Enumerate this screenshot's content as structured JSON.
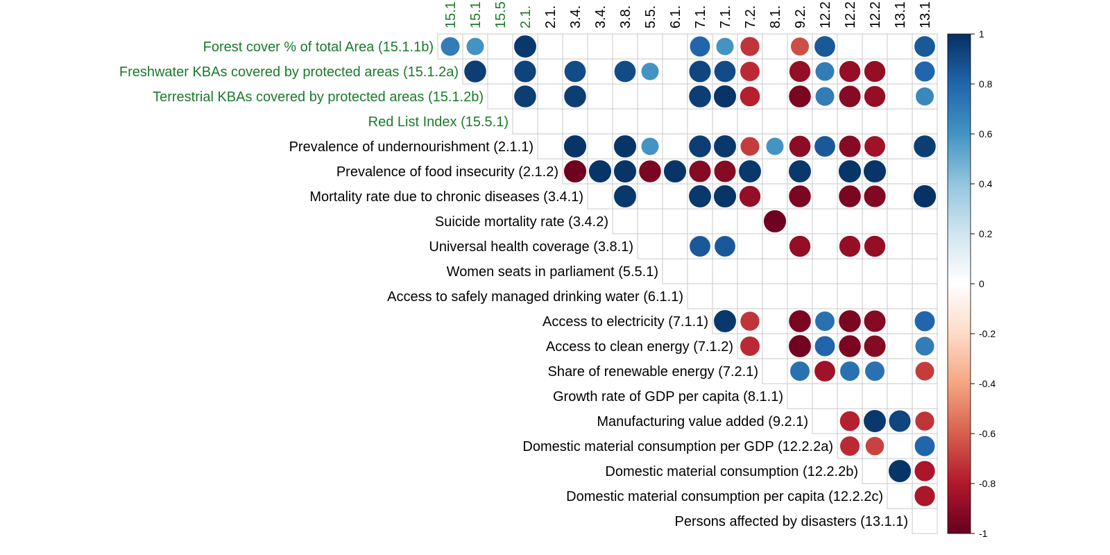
{
  "chart_data": {
    "type": "heatmap",
    "variant": "corrplot-upper-circles",
    "title": "",
    "row_labels": [
      "Forest cover % of total Area (15.1.1b)",
      "Freshwater KBAs covered by protected areas (15.1.2a)",
      "Terrestrial KBAs covered by protected areas (15.1.2b)",
      "Red List Index (15.5.1)",
      "Prevalence of undernourishment (2.1.1)",
      "Prevalence of food insecurity (2.1.2)",
      "Mortality rate due to chronic diseases (3.4.1)",
      "Suicide mortality rate (3.4.2)",
      "Universal health coverage (3.8.1)",
      "Women seats in parliament (5.5.1)",
      "Access to safely managed drinking water (6.1.1)",
      "Access to electricity (7.1.1)",
      "Access to clean energy (7.1.2)",
      "Share of renewable energy (7.2.1)",
      "Growth rate of GDP per capita (8.1.1)",
      "Manufacturing value added (9.2.1)",
      "Domestic material consumption per GDP (12.2.2a)",
      "Domestic material consumption (12.2.2b)",
      "Domestic material consumption per capita (12.2.2c)",
      "Persons affected by disasters (13.1.1)"
    ],
    "column_labels": [
      "15.1",
      "15.1",
      "15.5",
      "2.1.",
      "2.1.",
      "3.4.",
      "3.4.",
      "3.8.",
      "5.5.",
      "6.1.",
      "7.1.",
      "7.1.",
      "7.2.",
      "8.1.",
      "9.2.",
      "12.2",
      "12.2",
      "12.2",
      "13.1",
      "13.1"
    ],
    "highlight_count": 4,
    "highlight_color": "#1a7a2a",
    "text_color": "#000000",
    "colorbar": {
      "ticks": [
        "1",
        "0.8",
        "0.6",
        "0.4",
        "0.2",
        "0",
        "-0.2",
        "-0.4",
        "-0.6",
        "-0.8",
        "-1"
      ],
      "range": [
        -1,
        1
      ],
      "colors": [
        "#67001f",
        "#b2182b",
        "#d6604d",
        "#f4a582",
        "#fddbc7",
        "#ffffff",
        "#d1e5f0",
        "#92c5de",
        "#4393c3",
        "#2166ac",
        "#053061"
      ]
    },
    "cells": [
      [
        0,
        0,
        0.7
      ],
      [
        0,
        1,
        0.6
      ],
      [
        0,
        3,
        0.97
      ],
      [
        0,
        10,
        0.8
      ],
      [
        0,
        11,
        0.6
      ],
      [
        0,
        12,
        -0.72
      ],
      [
        0,
        14,
        -0.65
      ],
      [
        0,
        15,
        0.85
      ],
      [
        0,
        19,
        0.85
      ],
      [
        1,
        1,
        0.95
      ],
      [
        1,
        3,
        0.93
      ],
      [
        1,
        5,
        0.9
      ],
      [
        1,
        7,
        0.9
      ],
      [
        1,
        8,
        0.6
      ],
      [
        1,
        10,
        0.92
      ],
      [
        1,
        11,
        0.9
      ],
      [
        1,
        12,
        -0.75
      ],
      [
        1,
        14,
        -0.88
      ],
      [
        1,
        15,
        0.7
      ],
      [
        1,
        16,
        -0.88
      ],
      [
        1,
        17,
        -0.88
      ],
      [
        1,
        19,
        0.8
      ],
      [
        2,
        3,
        0.95
      ],
      [
        2,
        5,
        0.95
      ],
      [
        2,
        10,
        0.95
      ],
      [
        2,
        11,
        0.98
      ],
      [
        2,
        12,
        -0.78
      ],
      [
        2,
        14,
        -0.95
      ],
      [
        2,
        15,
        0.7
      ],
      [
        2,
        16,
        -0.92
      ],
      [
        2,
        17,
        -0.88
      ],
      [
        2,
        19,
        0.65
      ],
      [
        4,
        5,
        0.98
      ],
      [
        4,
        7,
        0.98
      ],
      [
        4,
        8,
        0.6
      ],
      [
        4,
        10,
        0.95
      ],
      [
        4,
        11,
        0.97
      ],
      [
        4,
        12,
        -0.7
      ],
      [
        4,
        13,
        0.6
      ],
      [
        4,
        14,
        -0.9
      ],
      [
        4,
        15,
        0.85
      ],
      [
        4,
        16,
        -0.92
      ],
      [
        4,
        17,
        -0.85
      ],
      [
        4,
        19,
        0.95
      ],
      [
        5,
        5,
        -0.98
      ],
      [
        5,
        6,
        0.98
      ],
      [
        5,
        7,
        0.98
      ],
      [
        5,
        8,
        -0.95
      ],
      [
        5,
        9,
        0.98
      ],
      [
        5,
        10,
        -0.92
      ],
      [
        5,
        11,
        -0.92
      ],
      [
        5,
        12,
        0.97
      ],
      [
        5,
        14,
        0.97
      ],
      [
        5,
        16,
        0.98
      ],
      [
        5,
        17,
        0.98
      ],
      [
        6,
        7,
        0.97
      ],
      [
        6,
        10,
        0.97
      ],
      [
        6,
        11,
        0.98
      ],
      [
        6,
        12,
        -0.88
      ],
      [
        6,
        14,
        -0.95
      ],
      [
        6,
        16,
        -0.95
      ],
      [
        6,
        17,
        -0.93
      ],
      [
        6,
        19,
        0.99
      ],
      [
        7,
        13,
        -0.98
      ],
      [
        8,
        10,
        0.85
      ],
      [
        8,
        11,
        0.85
      ],
      [
        8,
        14,
        -0.88
      ],
      [
        8,
        16,
        -0.88
      ],
      [
        8,
        17,
        -0.88
      ],
      [
        11,
        11,
        0.97
      ],
      [
        11,
        12,
        -0.72
      ],
      [
        11,
        14,
        -0.95
      ],
      [
        11,
        15,
        0.75
      ],
      [
        11,
        16,
        -0.95
      ],
      [
        11,
        17,
        -0.92
      ],
      [
        11,
        19,
        0.8
      ],
      [
        12,
        12,
        -0.75
      ],
      [
        12,
        14,
        -0.97
      ],
      [
        12,
        15,
        0.8
      ],
      [
        12,
        16,
        -0.95
      ],
      [
        12,
        17,
        -0.92
      ],
      [
        12,
        19,
        0.7
      ],
      [
        13,
        14,
        0.75
      ],
      [
        13,
        15,
        -0.85
      ],
      [
        13,
        16,
        0.75
      ],
      [
        13,
        17,
        0.75
      ],
      [
        13,
        19,
        -0.7
      ],
      [
        15,
        16,
        -0.78
      ],
      [
        15,
        17,
        0.97
      ],
      [
        15,
        18,
        0.92
      ],
      [
        15,
        19,
        -0.72
      ],
      [
        16,
        16,
        -0.75
      ],
      [
        16,
        17,
        -0.68
      ],
      [
        16,
        19,
        0.8
      ],
      [
        17,
        18,
        0.98
      ],
      [
        17,
        19,
        -0.82
      ],
      [
        18,
        19,
        -0.82
      ]
    ]
  }
}
